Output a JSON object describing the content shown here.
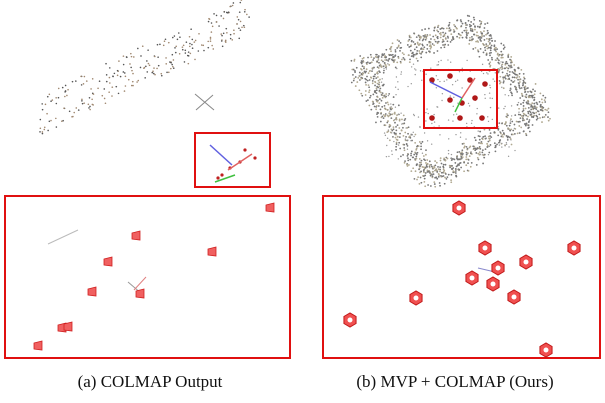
{
  "figure": {
    "captions": [
      "(a) COLMAP Output",
      "(b) MVP + COLMAP (Ours)"
    ]
  }
}
